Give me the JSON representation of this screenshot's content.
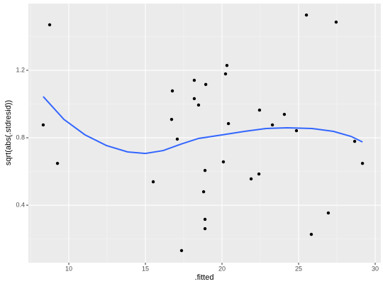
{
  "chart_data": {
    "type": "scatter",
    "x_label": ".fitted",
    "y_label": "sqrt(abs(.stdresid))",
    "xlim": [
      7.36,
      30.37
    ],
    "ylim": [
      0.059,
      1.596
    ],
    "xticks": [
      10,
      15,
      20,
      25,
      30
    ],
    "yticks": [
      0.4,
      0.8,
      1.2
    ],
    "grid": true,
    "points": {
      "color": "#000000",
      "x": [
        8.75,
        8.33,
        9.26,
        15.51,
        16.76,
        16.71,
        17.08,
        17.36,
        18.19,
        18.19,
        18.47,
        18.94,
        18.89,
        18.8,
        18.89,
        18.89,
        20.32,
        20.23,
        20.42,
        20.09,
        21.9,
        22.45,
        22.41,
        23.29,
        24.07,
        24.86,
        25.51,
        27.45,
        26.94,
        25.83,
        28.66,
        29.17
      ],
      "y": [
        1.47,
        0.876,
        0.648,
        0.539,
        1.078,
        0.909,
        0.792,
        0.131,
        1.141,
        1.032,
        0.994,
        1.116,
        0.606,
        0.48,
        0.316,
        0.261,
        1.229,
        1.179,
        0.884,
        0.657,
        0.556,
        0.964,
        0.585,
        0.876,
        0.939,
        0.842,
        1.528,
        1.486,
        0.354,
        0.227,
        0.779,
        0.648
      ]
    },
    "smooth": {
      "type": "line",
      "color": "#3366FF",
      "x": [
        8.33,
        9.68,
        11.06,
        12.45,
        13.84,
        15.0,
        16.16,
        17.31,
        18.47,
        20.0,
        21.48,
        22.87,
        24.26,
        25.88,
        27.27,
        28.43,
        29.17
      ],
      "y": [
        1.044,
        0.909,
        0.817,
        0.754,
        0.716,
        0.707,
        0.724,
        0.762,
        0.796,
        0.817,
        0.838,
        0.855,
        0.859,
        0.855,
        0.838,
        0.808,
        0.775
      ]
    }
  }
}
